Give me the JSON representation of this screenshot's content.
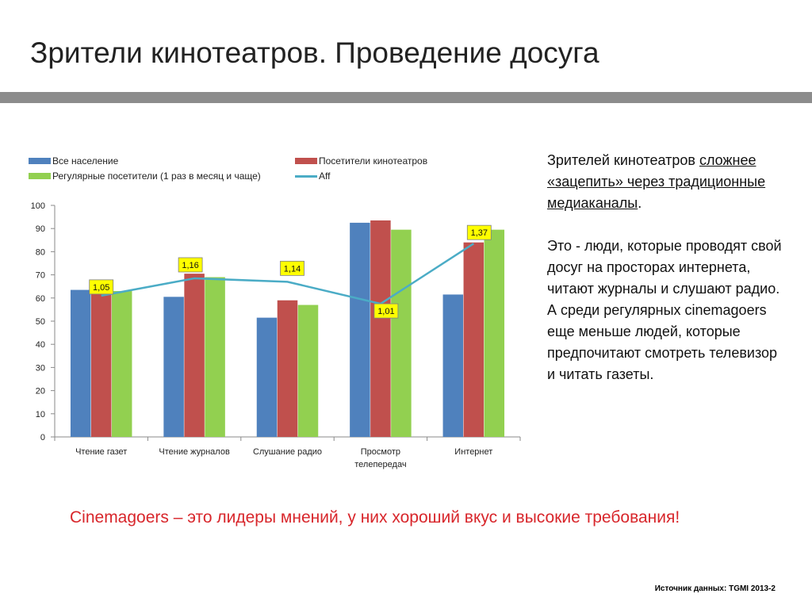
{
  "slide": {
    "title": "Зрители кинотеатров. Проведение досуга",
    "tagline": "Cinemagoers – это лидеры мнений, у них хороший вкус  и высокие требования!",
    "source": "Источник данных: TGMI 2013-2"
  },
  "side_text": {
    "p1_a": "Зрителей кинотеатров ",
    "p1_b": "сложнее «зацепить» через традиционные медиаканалы",
    "p1_c": ".",
    "p2": "Это - люди, которые проводят свой досуг на просторах интернета, читают журналы и слушают радио.",
    "p3": "А  среди регулярных cinemagoers еще меньше людей, которые предпочитают смотреть телевизор и читать газеты."
  },
  "chart_data": {
    "type": "bar",
    "categories": [
      "Чтение газет",
      "Чтение журналов",
      "Слушание радио",
      "Просмотр телепередач",
      "Интернет"
    ],
    "ylim": [
      0,
      100
    ],
    "yticks": [
      0,
      10,
      20,
      30,
      40,
      50,
      60,
      70,
      80,
      90,
      100
    ],
    "series": [
      {
        "name": "Все население",
        "color": "#4f81bd",
        "values": [
          63.5,
          60.5,
          51.5,
          92.5,
          61.5
        ]
      },
      {
        "name": "Посетители кинотеатров",
        "color": "#c0504d",
        "values": [
          66.5,
          70.5,
          59,
          93.5,
          84
        ]
      },
      {
        "name": "Регулярные посетители (1 раз в месяц и чаще)",
        "color": "#92d050",
        "values": [
          63,
          69,
          57,
          89.5,
          89.5
        ]
      }
    ],
    "line_series": {
      "name": "Aff",
      "color": "#4bacc6",
      "values": [
        1.05,
        1.16,
        1.14,
        1.01,
        1.37
      ],
      "labels": [
        "1,05",
        "1,16",
        "1,14",
        "1,01",
        "1,37"
      ],
      "plot_y": [
        61,
        68.5,
        67,
        57.5,
        83.5
      ]
    }
  }
}
